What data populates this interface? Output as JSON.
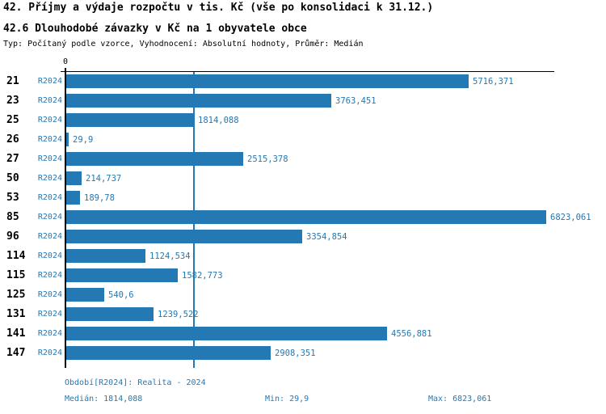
{
  "header": {
    "title_line1": "42. Příjmy a výdaje rozpočtu v tis. Kč (vše po konsolidaci k 31.12.)",
    "title_line2": "42.6 Dlouhodobé závazky v Kč na 1 obyvatele obce",
    "subtitle": "Typ: Počítaný podle vzorce, Vyhodnocení: Absolutní hodnoty, Průměr: Medián"
  },
  "chart_data": {
    "type": "bar",
    "orientation": "horizontal",
    "title": "42.6 Dlouhodobé závazky v Kč na 1 obyvatele obce",
    "origin_tick_label": "0",
    "period_label": "R2024",
    "categories": [
      "21",
      "23",
      "25",
      "26",
      "27",
      "50",
      "53",
      "85",
      "96",
      "114",
      "115",
      "125",
      "131",
      "141",
      "147"
    ],
    "values": [
      5716.371,
      3763.451,
      1814.088,
      29.9,
      2515.378,
      214.737,
      189.78,
      6823.061,
      3354.854,
      1124.534,
      1582.773,
      540.6,
      1239.522,
      4556.881,
      2908.351
    ],
    "value_labels": [
      "5716,371",
      "3763,451",
      "1814,088",
      "29,9",
      "2515,378",
      "214,737",
      "189,78",
      "6823,061",
      "3354,854",
      "1124,534",
      "1582,773",
      "540,6",
      "1239,522",
      "4556,881",
      "2908,351"
    ],
    "xlim": [
      0,
      6900
    ],
    "median_line_value": 1814.088,
    "grid": "single vertical line at median",
    "legend_position": "none",
    "bar_color": "#2478b4",
    "axis_color": "#000000",
    "label_color": "#2478b4"
  },
  "footer": {
    "period_info": "Období[R2024]: Realita - 2024",
    "median": "Medián: 1814,088",
    "min": "Min: 29,9",
    "max": "Max: 6823,061"
  }
}
